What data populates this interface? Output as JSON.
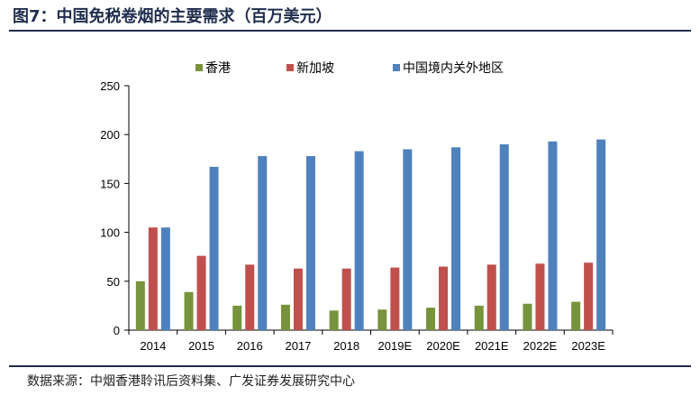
{
  "title": "图7：中国免税卷烟的主要需求（百万美元）",
  "source": "数据来源：中烟香港聆讯后资料集、广发证券发展研究中心",
  "chart_data": {
    "type": "bar",
    "categories": [
      "2014",
      "2015",
      "2016",
      "2017",
      "2018",
      "2019E",
      "2020E",
      "2021E",
      "2022E",
      "2023E"
    ],
    "series": [
      {
        "name": "香港",
        "color": "#77933c",
        "values": [
          50,
          39,
          25,
          26,
          20,
          21,
          23,
          25,
          27,
          29
        ]
      },
      {
        "name": "新加坡",
        "color": "#c0504d",
        "values": [
          105,
          76,
          67,
          63,
          63,
          64,
          65,
          67,
          68,
          69
        ]
      },
      {
        "name": "中国境内关外地区",
        "color": "#4f81bd",
        "values": [
          105,
          167,
          178,
          178,
          183,
          185,
          187,
          190,
          193,
          195
        ]
      }
    ],
    "ylim": [
      0,
      250
    ],
    "yticks": [
      0,
      50,
      100,
      150,
      200,
      250
    ],
    "legend_position": "top",
    "grid": false
  }
}
